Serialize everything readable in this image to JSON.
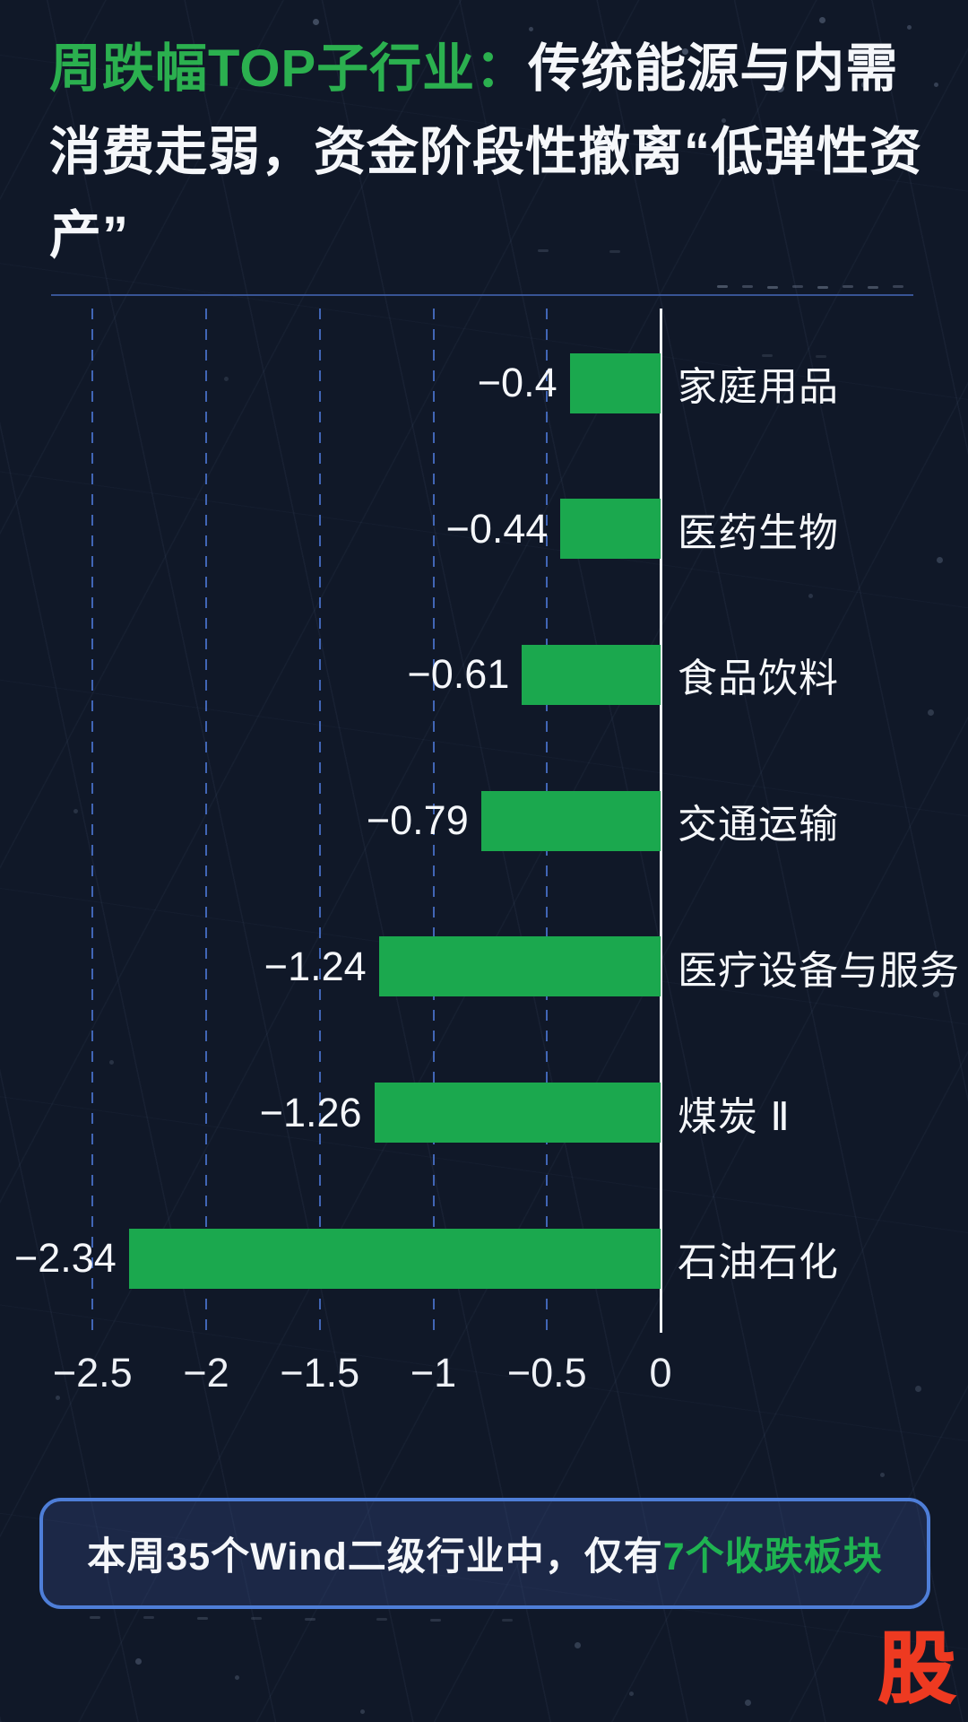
{
  "colors": {
    "background": "#101828",
    "green": "#2bb04f",
    "bar-green": "#1ba84e",
    "grid-blue": "#4a74cf",
    "axis-white": "#eef1f6",
    "text-white": "#f5f7fa",
    "divider-blue": "#3f5fa8",
    "banner-border": "#4e7ed8",
    "banner-fill": "rgba(51,72,130,0.35)",
    "red": "#ee3a21"
  },
  "title": {
    "highlight": "周跌幅TOP子行业：",
    "rest": "传统能源与内需消费走弱，资金阶段性撤离“低弹性资产”"
  },
  "chart_data": {
    "type": "bar",
    "orientation": "horizontal",
    "title": "周跌幅TOP子行业",
    "categories": [
      "家庭用品",
      "医药生物",
      "食品饮料",
      "交通运输",
      "医疗设备与服务",
      "煤炭 Ⅱ",
      "石油石化"
    ],
    "values": [
      -0.4,
      -0.44,
      -0.61,
      -0.79,
      -1.24,
      -1.26,
      -2.34
    ],
    "value_labels": [
      "−0.4",
      "−0.44",
      "−0.61",
      "−0.79",
      "−1.24",
      "−1.26",
      "−2.34"
    ],
    "x_ticks": [
      {
        "value": -2.5,
        "label": "−2.5"
      },
      {
        "value": -2,
        "label": "−2"
      },
      {
        "value": -1.5,
        "label": "−1.5"
      },
      {
        "value": -1,
        "label": "−1"
      },
      {
        "value": -0.5,
        "label": "−0.5"
      },
      {
        "value": 0,
        "label": "0"
      }
    ],
    "xlim": [
      -2.5,
      0
    ],
    "grid": "dashed-vertical",
    "legend": "none",
    "bar_color": "#1ba84e",
    "gridline_color": "#4a74cf",
    "axis_color": "#eef1f6"
  },
  "banner": {
    "text_plain": "本周35个Wind二级行业中，仅有",
    "text_highlight": "7个收跌板块"
  },
  "logo": {
    "text": "股"
  }
}
